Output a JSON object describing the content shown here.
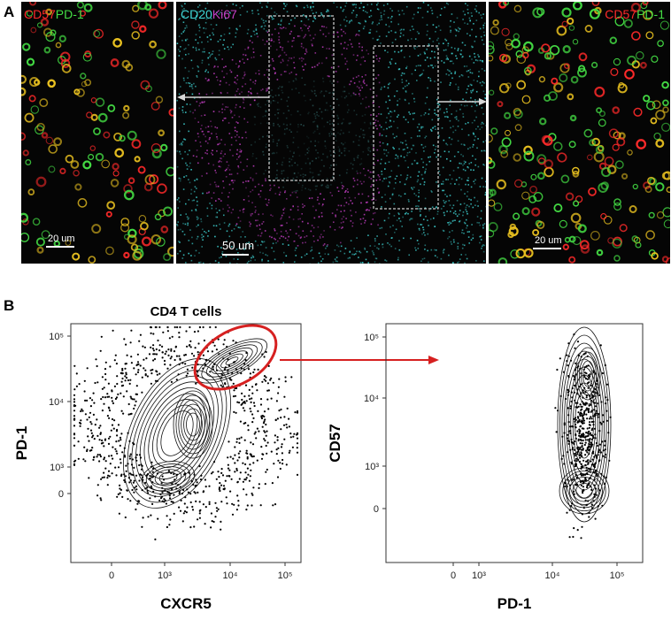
{
  "panels": {
    "a_letter": "A",
    "b_letter": "B"
  },
  "micrographs": {
    "left": {
      "label_red": "CD57",
      "label_green": "PD-1",
      "scale": "20 um"
    },
    "center": {
      "label_cyan": "CD20",
      "label_magenta": "Ki67",
      "scale": "50 um"
    },
    "right": {
      "label_red": "CD57",
      "label_green": "PD-1",
      "scale": "20 um"
    }
  },
  "colors": {
    "red": "#ff2a2a",
    "green": "#44dd44",
    "cyan": "#3fd6d6",
    "magenta": "#c43fc4",
    "gate": "#d62020"
  },
  "chart_data": [
    {
      "type": "scatter",
      "title": "CD4 T cells",
      "xlabel": "CXCR5",
      "ylabel": "PD-1",
      "scale": "biexponential",
      "x_ticks": [
        "0",
        "10³",
        "10⁴",
        "10⁵"
      ],
      "y_ticks": [
        "0",
        "10³",
        "10⁴",
        "10⁵"
      ],
      "gate": {
        "shape": "ellipse",
        "population": "PD-1 high CXCR5 high",
        "color": "#d62020"
      }
    },
    {
      "type": "scatter",
      "title": "",
      "xlabel": "PD-1",
      "ylabel": "CD57",
      "scale": "biexponential",
      "x_ticks": [
        "0",
        "10³",
        "10⁴",
        "10⁵"
      ],
      "y_ticks": [
        "0",
        "10³",
        "10⁴",
        "10⁵"
      ]
    }
  ]
}
